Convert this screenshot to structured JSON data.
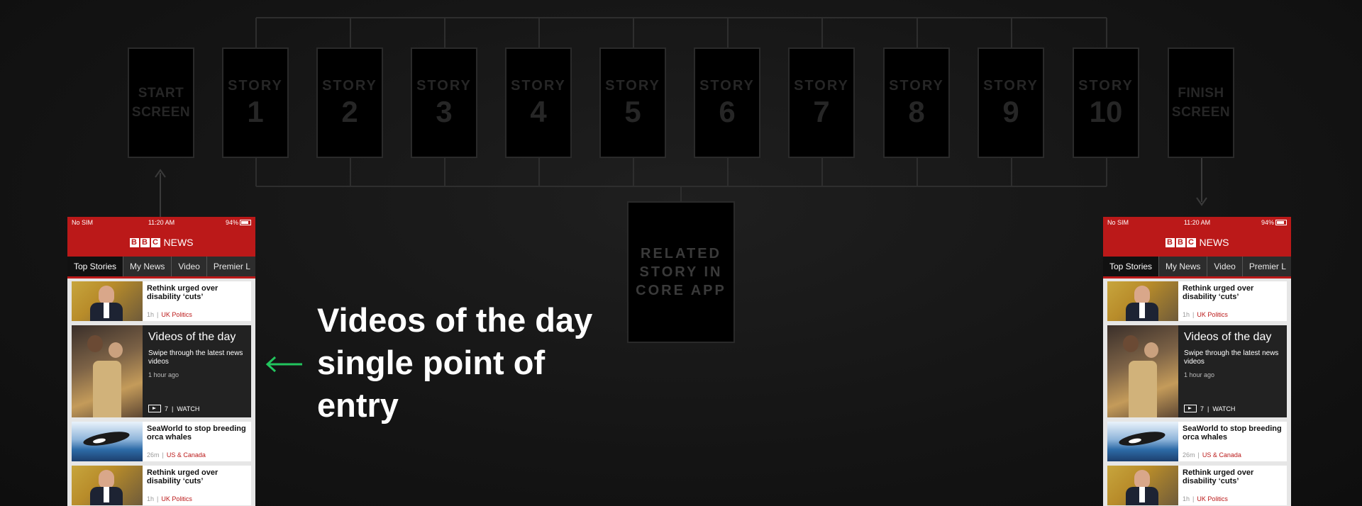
{
  "flow": {
    "cards": [
      {
        "label": "START",
        "label2": "SCREEN"
      },
      {
        "label": "STORY",
        "number": "1"
      },
      {
        "label": "STORY",
        "number": "2"
      },
      {
        "label": "STORY",
        "number": "3"
      },
      {
        "label": "STORY",
        "number": "4"
      },
      {
        "label": "STORY",
        "number": "5"
      },
      {
        "label": "STORY",
        "number": "6"
      },
      {
        "label": "STORY",
        "number": "7"
      },
      {
        "label": "STORY",
        "number": "8"
      },
      {
        "label": "STORY",
        "number": "9"
      },
      {
        "label": "STORY",
        "number": "10"
      },
      {
        "label": "FINISH",
        "label2": "SCREEN"
      }
    ],
    "related": "RELATED STORY IN CORE APP"
  },
  "headline": "Videos of the day single point of entry",
  "colors": {
    "accent_arrow": "#22c55e",
    "bbc_red": "#bb1919"
  },
  "phone": {
    "status": {
      "carrier": "No SIM",
      "time": "11:20 AM",
      "battery": "94%"
    },
    "logo": {
      "letters": [
        "B",
        "B",
        "C"
      ],
      "news": "NEWS"
    },
    "tabs": [
      "Top Stories",
      "My News",
      "Video",
      "Premier L"
    ],
    "stories": [
      {
        "title": "Rethink urged over disability ‘cuts’",
        "age": "1h",
        "category": "UK Politics"
      },
      {
        "title": "SeaWorld to stop breeding orca whales",
        "age": "26m",
        "category": "US & Canada"
      },
      {
        "title": "Rethink urged over disability ‘cuts’",
        "age": "1h",
        "category": "UK Politics"
      }
    ],
    "videos_of_day": {
      "title": "Videos of the day",
      "description": "Swipe through the latest news videos",
      "time": "1 hour ago",
      "count": "7",
      "action": "WATCH"
    }
  }
}
